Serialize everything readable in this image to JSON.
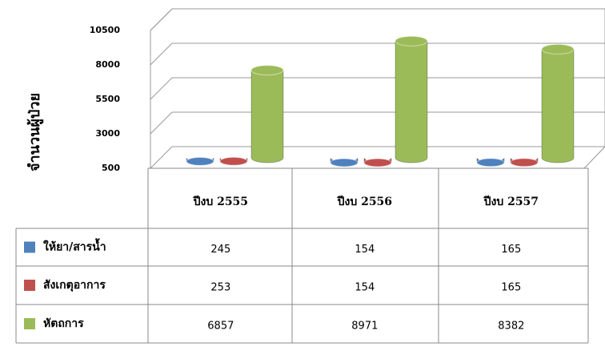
{
  "chart_data": {
    "type": "bar",
    "y_axis_label": "จำนวนผู้ป่วย",
    "categories": [
      "ปีงบ 2555",
      "ปีงบ 2556",
      "ปีงบ 2557"
    ],
    "series": [
      {
        "name": "ให้ยา/สารน้ำ",
        "color": "#4f81bd",
        "values": [
          245,
          154,
          165
        ]
      },
      {
        "name": "สังเกตุอาการ",
        "color": "#c0504d",
        "values": [
          253,
          154,
          165
        ]
      },
      {
        "name": "หัตถการ",
        "color": "#9bbb59",
        "values": [
          6857,
          8971,
          8382
        ]
      }
    ],
    "ylim": [
      500,
      10500
    ],
    "yticks": [
      500,
      3000,
      5500,
      8000,
      10500
    ],
    "grid": true
  }
}
